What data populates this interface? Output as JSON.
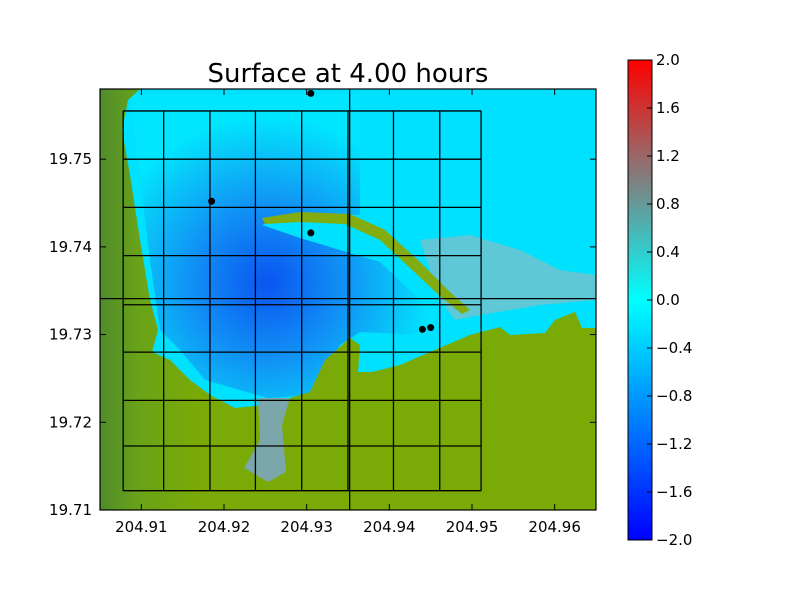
{
  "chart_data": {
    "type": "heatmap",
    "title": "Surface at 4.00 hours",
    "xlabel": "",
    "ylabel": "",
    "xlim": [
      204.905,
      204.965
    ],
    "ylim": [
      19.71,
      19.758
    ],
    "x_ticks": [
      204.91,
      204.92,
      204.93,
      204.94,
      204.95,
      204.96
    ],
    "x_tick_labels": [
      "204.91",
      "204.92",
      "204.93",
      "204.94",
      "204.95",
      "204.96"
    ],
    "y_ticks": [
      19.71,
      19.72,
      19.73,
      19.74,
      19.75
    ],
    "y_tick_labels": [
      "19.71",
      "19.72",
      "19.73",
      "19.74",
      "19.75"
    ],
    "colorbar": {
      "range": [
        -2.0,
        2.0
      ],
      "ticks": [
        2.0,
        1.6,
        1.2,
        0.8,
        0.4,
        0.0,
        -0.4,
        -0.8,
        -1.2,
        -1.6,
        -2.0
      ],
      "tick_labels": [
        "2.0",
        "1.6",
        "1.2",
        "0.8",
        "0.4",
        "0.0",
        "−0.4",
        "−0.8",
        "−1.2",
        "−1.6",
        "−2.0"
      ],
      "colors": [
        "#0000ff",
        "#00ffff",
        "#808080",
        "#ff0000"
      ]
    },
    "grid_patch": {
      "x_lines": [
        204.9078,
        204.9127,
        204.9183,
        204.9238,
        204.9294,
        204.935,
        204.9405,
        204.9461,
        204.9511
      ],
      "y_lines": [
        19.7122,
        19.7173,
        19.7225,
        19.728,
        19.7334,
        19.739,
        19.7445,
        19.75,
        19.7555
      ]
    },
    "crosshair": {
      "x": 204.9352,
      "y": 19.7341
    },
    "gauges": [
      {
        "x": 204.9305,
        "y": 19.7575
      },
      {
        "x": 204.9185,
        "y": 19.7452
      },
      {
        "x": 204.9305,
        "y": 19.7416
      },
      {
        "x": 204.944,
        "y": 19.7306
      },
      {
        "x": 204.945,
        "y": 19.7308
      }
    ]
  }
}
